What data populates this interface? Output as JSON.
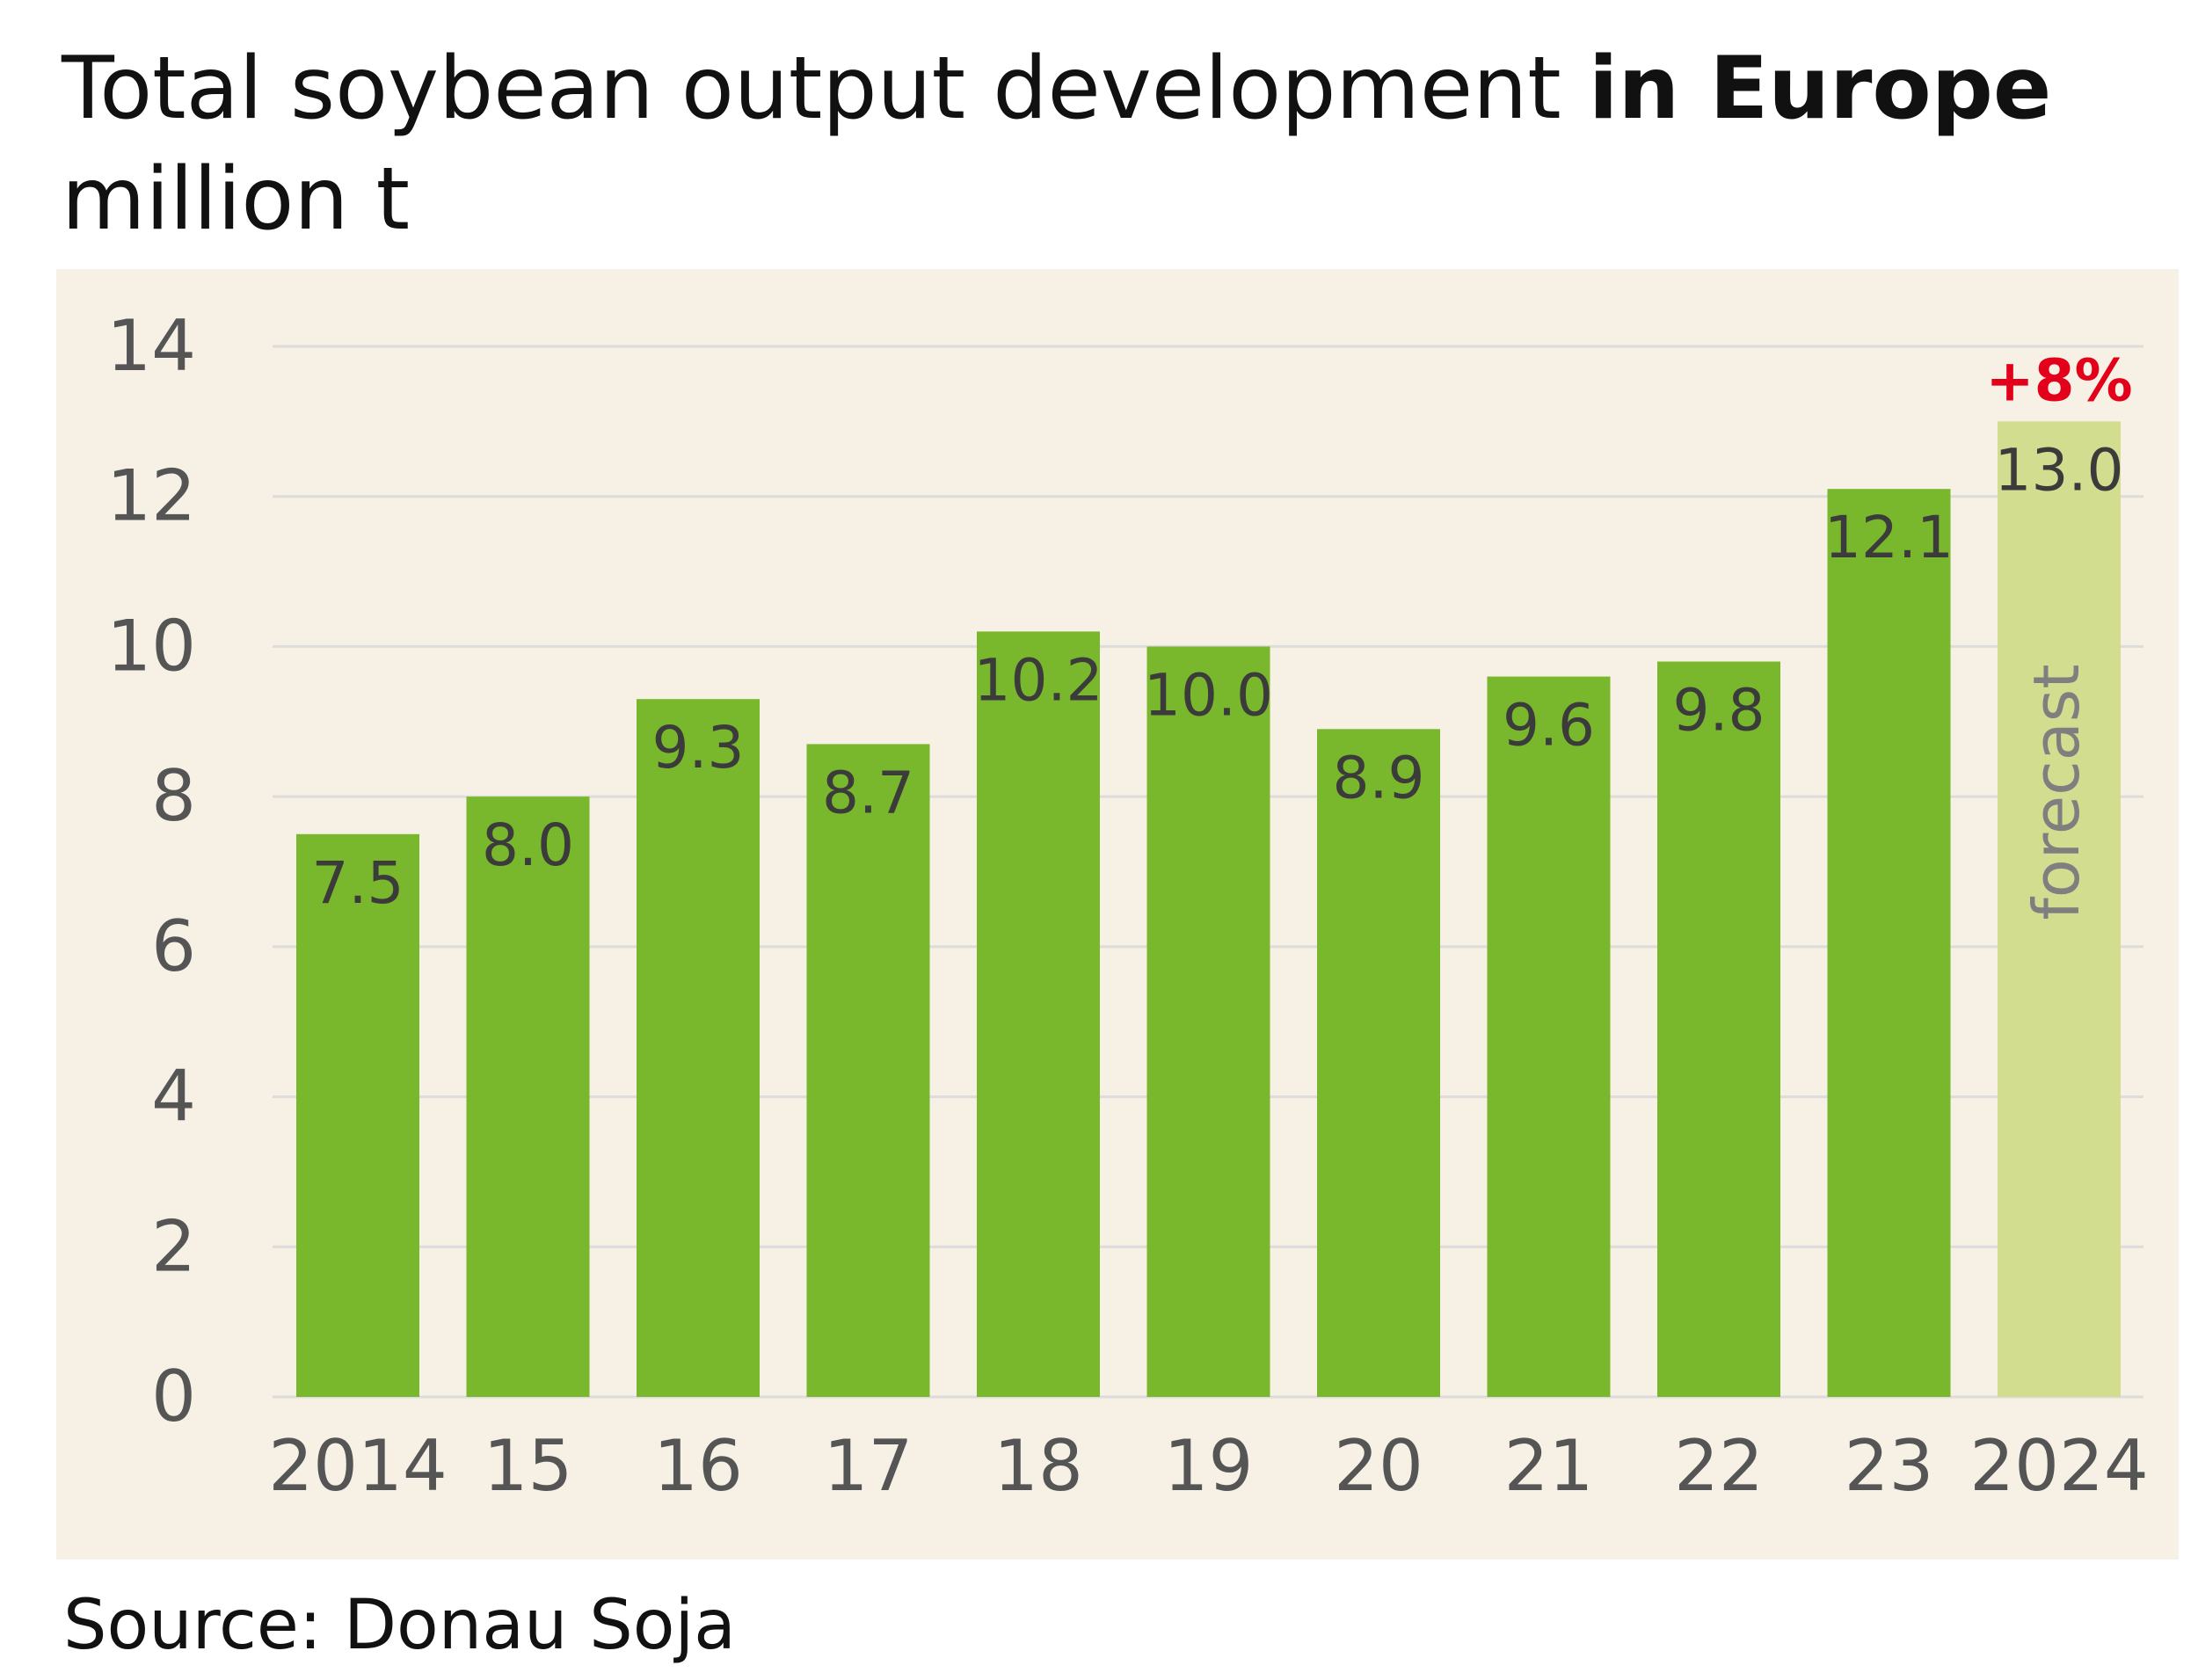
{
  "title": {
    "text_plain": "Total soybean output development ",
    "text_bold": "in Europe",
    "unit_line": "million t"
  },
  "source": "Source: Donau Soja",
  "colors": {
    "bar": "#79b72c",
    "forecast_bar": "#d3dd8f",
    "grid": "#dcdcdc",
    "axis_text": "#555555",
    "label_text": "#3b3b3b",
    "growth": "#e3001b",
    "panel": "#f6f1e4"
  },
  "chart_data": {
    "type": "bar",
    "title": "Total soybean output development in Europe",
    "ylabel": "million t",
    "xlabel": "",
    "categories": [
      "2014",
      "15",
      "16",
      "17",
      "18",
      "19",
      "20",
      "21",
      "22",
      "23",
      "2024"
    ],
    "values": [
      7.5,
      8.0,
      9.3,
      8.7,
      10.2,
      10.0,
      8.9,
      9.6,
      9.8,
      12.1,
      13.0
    ],
    "value_labels": [
      "7.5",
      "8.0",
      "9.3",
      "8.7",
      "10.2",
      "10.0",
      "8.9",
      "9.6",
      "9.8",
      "12.1",
      "13.0"
    ],
    "ylim": [
      0,
      14
    ],
    "yticks": [
      "0",
      "2",
      "4",
      "6",
      "8",
      "10",
      "12",
      "14"
    ],
    "grid": true,
    "forecast": {
      "category": "2024",
      "label": "forecast",
      "change": "+8%"
    }
  }
}
